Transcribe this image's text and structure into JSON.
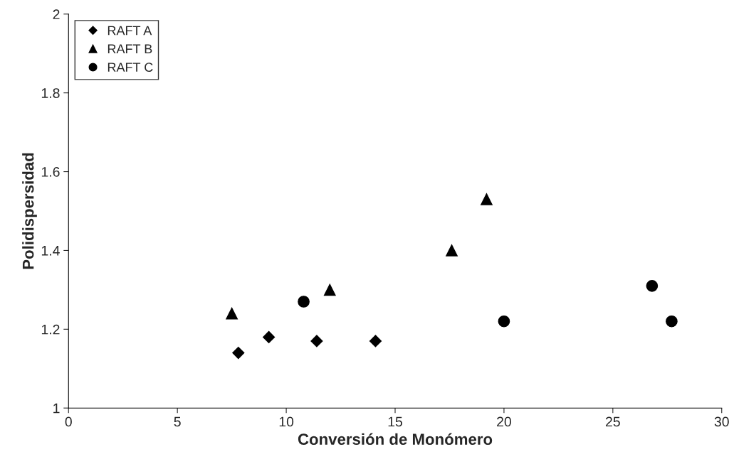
{
  "chart_data": {
    "type": "scatter",
    "xlabel": "Conversión de Monómero",
    "ylabel": "Polidispersidad",
    "xlim": [
      0,
      30
    ],
    "xticks": [
      0,
      5,
      10,
      15,
      20,
      25,
      30
    ],
    "ylim": [
      1,
      2
    ],
    "yticks": [
      1,
      {
        "value": 1.2,
        "label": "1.2"
      },
      {
        "value": 1.4,
        "label": "1.4"
      },
      {
        "value": 1.6,
        "label": "1.6"
      },
      {
        "value": 1.8,
        "label": "1.8"
      },
      2
    ],
    "grid": false,
    "legend": "top left",
    "series": [
      {
        "name": "RAFT A",
        "color": "#000000",
        "marker": "diamond",
        "x": [
          7.8,
          9.2,
          11.4,
          14.1
        ],
        "values": [
          1.14,
          1.18,
          1.17,
          1.17
        ]
      },
      {
        "name": "RAFT B",
        "color": "#000000",
        "marker": "triangle",
        "x": [
          7.5,
          12.0,
          17.6,
          19.2
        ],
        "values": [
          1.24,
          1.3,
          1.4,
          1.53
        ]
      },
      {
        "name": "RAFT C",
        "color": "#000000",
        "marker": "circle",
        "x": [
          10.8,
          20.0,
          26.8,
          27.7
        ],
        "values": [
          1.27,
          1.22,
          1.31,
          1.22
        ]
      }
    ]
  }
}
